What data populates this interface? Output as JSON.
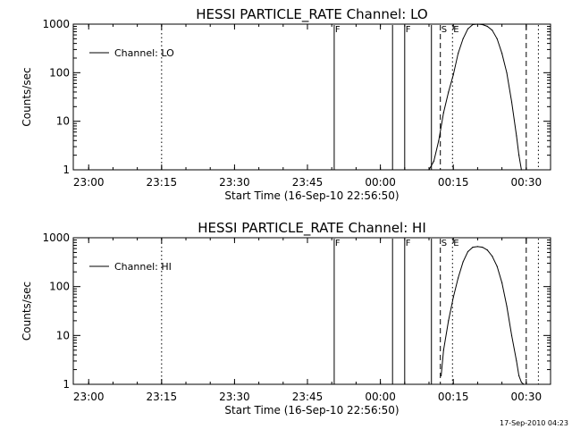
{
  "chart_data": [
    {
      "type": "line",
      "title": "HESSI PARTICLE_RATE Channel: LO",
      "xlabel": "Start Time (16-Sep-10 22:56:50)",
      "ylabel": "Counts/sec",
      "yscale": "log",
      "ylim": [
        1,
        1000
      ],
      "xlim": [
        "22:56:50",
        "00:35:00"
      ],
      "x_ticks": [
        "23:00",
        "23:15",
        "23:30",
        "23:45",
        "00:00",
        "00:15",
        "00:30"
      ],
      "y_ticks": [
        "1",
        "10",
        "100",
        "1000"
      ],
      "legend": {
        "placement": "top-left",
        "label": "Channel: LO"
      },
      "series": [
        {
          "name": "Channel: LO",
          "x": [
            "00:10:00",
            "00:11:00",
            "00:12:00",
            "00:13:00",
            "00:14:00",
            "00:15:00",
            "00:16:00",
            "00:17:00",
            "00:18:00",
            "00:19:00",
            "00:20:00",
            "00:21:00",
            "00:22:00",
            "00:23:00",
            "00:24:00",
            "00:25:00",
            "00:26:00",
            "00:27:00",
            "00:28:00",
            "00:28:30",
            "00:29:00"
          ],
          "y": [
            1,
            1.5,
            4,
            15,
            40,
            90,
            250,
            500,
            800,
            980,
            1000,
            980,
            900,
            750,
            500,
            250,
            100,
            25,
            5,
            2,
            1
          ]
        }
      ],
      "markers": [
        {
          "time": "23:15:00",
          "style": "dotted",
          "label": ""
        },
        {
          "time": "23:50:30",
          "style": "solid",
          "label": "F"
        },
        {
          "time": "00:02:30",
          "style": "solid",
          "label": ""
        },
        {
          "time": "00:05:00",
          "style": "solid",
          "label": "F"
        },
        {
          "time": "00:10:30",
          "style": "solid",
          "label": ""
        },
        {
          "time": "00:12:20",
          "style": "dashed",
          "label": "S"
        },
        {
          "time": "00:14:50",
          "style": "dotted",
          "label": "E"
        },
        {
          "time": "00:30:00",
          "style": "dashed",
          "label": ""
        },
        {
          "time": "00:32:30",
          "style": "dotted",
          "label": ""
        }
      ]
    },
    {
      "type": "line",
      "title": "HESSI PARTICLE_RATE Channel: HI",
      "xlabel": "Start Time (16-Sep-10 22:56:50)",
      "ylabel": "Counts/sec",
      "yscale": "log",
      "ylim": [
        1,
        1000
      ],
      "xlim": [
        "22:56:50",
        "00:35:00"
      ],
      "x_ticks": [
        "23:00",
        "23:15",
        "23:30",
        "23:45",
        "00:00",
        "00:15",
        "00:30"
      ],
      "y_ticks": [
        "1",
        "10",
        "100",
        "1000"
      ],
      "legend": {
        "placement": "top-left",
        "label": "Channel: HI"
      },
      "series": [
        {
          "name": "Channel: HI",
          "x": [
            "00:12:30",
            "00:13:00",
            "00:14:00",
            "00:15:00",
            "00:16:00",
            "00:17:00",
            "00:18:00",
            "00:19:00",
            "00:20:00",
            "00:21:00",
            "00:22:00",
            "00:23:00",
            "00:24:00",
            "00:25:00",
            "00:26:00",
            "00:27:00",
            "00:28:00",
            "00:28:30",
            "00:29:00",
            "00:29:30"
          ],
          "y": [
            1.5,
            5,
            20,
            60,
            150,
            320,
            520,
            640,
            660,
            640,
            560,
            420,
            260,
            120,
            40,
            10,
            3,
            1.5,
            1.1,
            1
          ]
        }
      ],
      "markers": [
        {
          "time": "23:15:00",
          "style": "dotted",
          "label": ""
        },
        {
          "time": "23:50:30",
          "style": "solid",
          "label": "F"
        },
        {
          "time": "00:02:30",
          "style": "solid",
          "label": ""
        },
        {
          "time": "00:05:00",
          "style": "solid",
          "label": "F"
        },
        {
          "time": "00:10:30",
          "style": "solid",
          "label": ""
        },
        {
          "time": "00:12:20",
          "style": "dashed",
          "label": "S"
        },
        {
          "time": "00:14:50",
          "style": "dotted",
          "label": "E"
        },
        {
          "time": "00:30:00",
          "style": "dashed",
          "label": ""
        },
        {
          "time": "00:32:30",
          "style": "dotted",
          "label": ""
        }
      ]
    }
  ],
  "footer": {
    "stamp": "17-Sep-2010 04:23"
  }
}
